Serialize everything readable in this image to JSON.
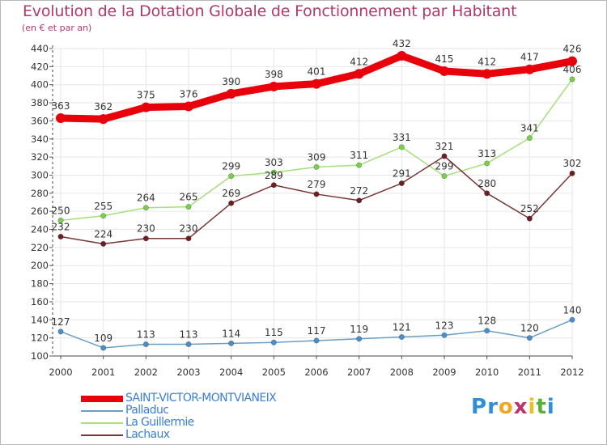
{
  "header": {
    "title": "Evolution de la Dotation Globale de Fonctionnement par Habitant",
    "subtitle": "(en € et par an)"
  },
  "brand": {
    "text": "Proxiti",
    "letters": [
      "P",
      "r",
      "o",
      "x",
      "i",
      "t",
      "i"
    ],
    "colors": [
      "#2f8fd8",
      "#2f8fd8",
      "#f0a820",
      "#c0306a",
      "#e8c020",
      "#58b038",
      "#2f8fd8"
    ]
  },
  "chart_data": {
    "type": "line",
    "title": "Evolution de la Dotation Globale de Fonctionnement par Habitant",
    "subtitle": "(en € et par an)",
    "xlabel": "",
    "ylabel": "",
    "x": [
      "2000",
      "2001",
      "2002",
      "2003",
      "2004",
      "2005",
      "2006",
      "2007",
      "2008",
      "2009",
      "2010",
      "2011",
      "2012"
    ],
    "ylim": [
      100,
      440
    ],
    "yticks": [
      "100",
      "120",
      "140",
      "160",
      "180",
      "200",
      "220",
      "240",
      "260",
      "280",
      "300",
      "320",
      "340",
      "360",
      "380",
      "400",
      "420",
      "440"
    ],
    "grid": true,
    "legend_position": "bottom-left",
    "series": [
      {
        "name": "SAINT-VICTOR-MONTVIANEIX",
        "color": "#e8000b",
        "marker_color": "#e8000b",
        "style": "thick",
        "values": [
          363,
          362,
          375,
          376,
          390,
          398,
          401,
          412,
          432,
          415,
          412,
          417,
          426
        ]
      },
      {
        "name": "Palladuc",
        "color": "#6a9ec6",
        "marker_color": "#4a90c8",
        "style": "thin",
        "values": [
          127,
          109,
          113,
          113,
          114,
          115,
          117,
          119,
          121,
          123,
          128,
          120,
          140
        ]
      },
      {
        "name": "La Guillermie",
        "color": "#a6df7c",
        "marker_color": "#7ad04e",
        "style": "thin",
        "values": [
          250,
          255,
          264,
          265,
          299,
          303,
          309,
          311,
          331,
          299,
          313,
          341,
          406
        ]
      },
      {
        "name": "Lachaux",
        "color": "#7a3535",
        "marker_color": "#6e1f24",
        "style": "thin",
        "values": [
          232,
          224,
          230,
          230,
          269,
          289,
          279,
          272,
          291,
          321,
          280,
          252,
          302
        ]
      }
    ]
  }
}
